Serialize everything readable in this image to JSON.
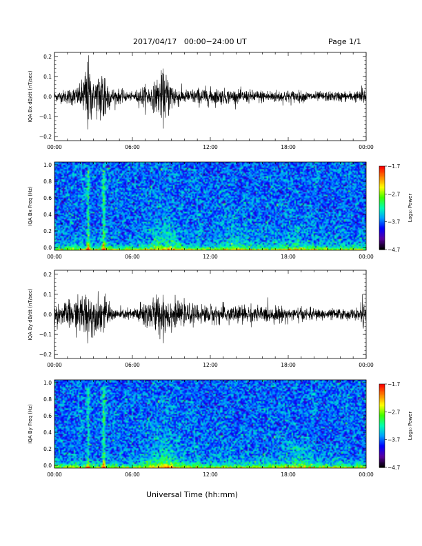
{
  "header": {
    "title": "2017/04/17   00:00−24:00 UT",
    "page": "Page 1/1"
  },
  "footer": {
    "xlabel": "Universal Time (hh:mm)"
  },
  "colors": {
    "trace": "#000000",
    "axis": "#000000",
    "background": "#ffffff"
  },
  "chart_data": [
    {
      "type": "line",
      "ylabel": "IQA Bx dB/dt (nT/sec)",
      "xlim": [
        "00:00",
        "24:00"
      ],
      "ylim": [
        -0.22,
        0.22
      ],
      "yticks": [
        "0.2",
        "0.1",
        "0.0",
        "−0.1",
        "−0.2"
      ],
      "xticks": [
        "00:00",
        "06:00",
        "12:00",
        "18:00",
        "00:00"
      ],
      "activity_envelope": [
        {
          "t": 0,
          "amp": 0.025
        },
        {
          "t": 1,
          "amp": 0.04
        },
        {
          "t": 2,
          "amp": 0.06
        },
        {
          "t": 2.6,
          "amp": 0.22
        },
        {
          "t": 3,
          "amp": 0.07
        },
        {
          "t": 3.8,
          "amp": 0.2
        },
        {
          "t": 4.3,
          "amp": 0.05
        },
        {
          "t": 6,
          "amp": 0.02
        },
        {
          "t": 6.8,
          "amp": 0.06
        },
        {
          "t": 7.5,
          "amp": 0.06
        },
        {
          "t": 8.4,
          "amp": 0.14
        },
        {
          "t": 9.2,
          "amp": 0.07
        },
        {
          "t": 10,
          "amp": 0.035
        },
        {
          "t": 11.5,
          "amp": 0.05
        },
        {
          "t": 14,
          "amp": 0.035
        },
        {
          "t": 18,
          "amp": 0.035
        },
        {
          "t": 20,
          "amp": 0.025
        },
        {
          "t": 23.5,
          "amp": 0.03
        },
        {
          "t": 23.7,
          "amp": 0.06
        },
        {
          "t": 24,
          "amp": 0.025
        }
      ]
    },
    {
      "type": "heatmap",
      "ylabel": "IQA Bx Freq (Hz)",
      "xlim": [
        "00:00",
        "24:00"
      ],
      "ylim": [
        0,
        1.0
      ],
      "yticks": [
        "1.0",
        "0.8",
        "0.6",
        "0.4",
        "0.2",
        "0.0"
      ],
      "xticks": [
        "00:00",
        "06:00",
        "12:00",
        "18:00",
        "00:00"
      ],
      "colorbar": {
        "label": "Log₁₀ Power",
        "ticks": [
          "−1.7",
          "−2.7",
          "−3.7",
          "−4.7"
        ],
        "range": [
          -4.7,
          -1.7
        ],
        "colors": [
          "#000000",
          "#5a00a0",
          "#0000ff",
          "#00a0ff",
          "#00ffb0",
          "#40ff00",
          "#ffff00",
          "#ff8000",
          "#ff0000"
        ]
      },
      "features": [
        {
          "t": 2.6,
          "fmax": 0.9,
          "strength": 0.9
        },
        {
          "t": 3.8,
          "fmax": 0.9,
          "strength": 1.0
        },
        {
          "t": 8.5,
          "fmax": 0.5,
          "strength": 0.8
        },
        {
          "t": 14.0,
          "fmax": 0.55,
          "strength": 0.35
        },
        {
          "t": 18.5,
          "fmax": 0.3,
          "strength": 0.4
        }
      ]
    },
    {
      "type": "line",
      "ylabel": "IQA By dB/dt (nT/sec)",
      "xlim": [
        "00:00",
        "24:00"
      ],
      "ylim": [
        -0.22,
        0.22
      ],
      "yticks": [
        "0.2",
        "0.1",
        "0.0",
        "−0.1",
        "−0.2"
      ],
      "xticks": [
        "00:00",
        "06:00",
        "12:00",
        "18:00",
        "00:00"
      ],
      "activity_envelope": [
        {
          "t": 0,
          "amp": 0.05
        },
        {
          "t": 1,
          "amp": 0.07
        },
        {
          "t": 2,
          "amp": 0.1
        },
        {
          "t": 2.6,
          "amp": 0.14
        },
        {
          "t": 3,
          "amp": 0.09
        },
        {
          "t": 3.8,
          "amp": 0.1
        },
        {
          "t": 4.5,
          "amp": 0.03
        },
        {
          "t": 6,
          "amp": 0.03
        },
        {
          "t": 7,
          "amp": 0.08
        },
        {
          "t": 8.5,
          "amp": 0.12
        },
        {
          "t": 9.5,
          "amp": 0.06
        },
        {
          "t": 11,
          "amp": 0.05
        },
        {
          "t": 14,
          "amp": 0.05
        },
        {
          "t": 18,
          "amp": 0.04
        },
        {
          "t": 20,
          "amp": 0.03
        },
        {
          "t": 23.5,
          "amp": 0.03
        },
        {
          "t": 23.7,
          "amp": 0.09
        },
        {
          "t": 24,
          "amp": 0.03
        }
      ]
    },
    {
      "type": "heatmap",
      "ylabel": "IQA By Freq (Hz)",
      "xlim": [
        "00:00",
        "24:00"
      ],
      "ylim": [
        0,
        1.0
      ],
      "yticks": [
        "1.0",
        "0.8",
        "0.6",
        "0.4",
        "0.2",
        "0.0"
      ],
      "xticks": [
        "00:00",
        "06:00",
        "12:00",
        "18:00",
        "00:00"
      ],
      "colorbar": {
        "label": "Log₁₀ Power",
        "ticks": [
          "−1.7",
          "−2.7",
          "−3.7",
          "−4.7"
        ],
        "range": [
          -4.7,
          -1.7
        ],
        "colors": [
          "#000000",
          "#5a00a0",
          "#0000ff",
          "#00a0ff",
          "#00ffb0",
          "#40ff00",
          "#ffff00",
          "#ff8000",
          "#ff0000"
        ]
      },
      "features": [
        {
          "t": 2.6,
          "fmax": 0.9,
          "strength": 0.7
        },
        {
          "t": 3.8,
          "fmax": 0.9,
          "strength": 0.9
        },
        {
          "t": 8.5,
          "fmax": 0.55,
          "strength": 0.9
        },
        {
          "t": 18.6,
          "fmax": 0.28,
          "strength": 0.6
        }
      ]
    }
  ]
}
